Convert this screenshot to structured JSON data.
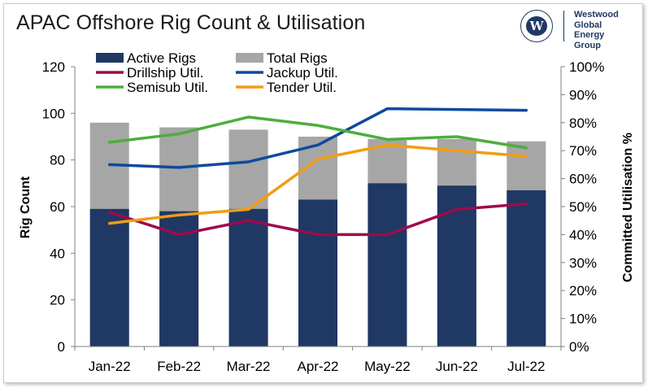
{
  "header": {
    "title": "APAC Offshore Rig Count & Utilisation",
    "logo_lines": [
      "Westwood",
      "Global Energy",
      "Group"
    ],
    "logo_mark": "W"
  },
  "colors": {
    "active_rigs": "#1f3864",
    "total_rigs": "#a6a6a6",
    "drillship": "#9e0a4c",
    "jackup": "#0e4a9e",
    "semisub": "#4cae3c",
    "tender": "#f39c12",
    "axis": "#7f7f7f"
  },
  "chart_data": {
    "type": "bar",
    "categories": [
      "Jan-22",
      "Feb-22",
      "Mar-22",
      "Apr-22",
      "May-22",
      "Jun-22",
      "Jul-22"
    ],
    "bar_series": [
      {
        "name": "Active Rigs",
        "values": [
          59,
          58,
          59,
          63,
          70,
          69,
          67
        ]
      },
      {
        "name": "Total Rigs",
        "values": [
          96,
          94,
          93,
          90,
          89,
          89,
          88
        ]
      }
    ],
    "line_series": [
      {
        "name": "Drillship Util.",
        "values": [
          48,
          40,
          45,
          40,
          40,
          49,
          51
        ]
      },
      {
        "name": "Jackup Util.",
        "values": [
          65,
          64,
          66,
          72,
          85,
          84.7,
          84.4
        ]
      },
      {
        "name": "Semisub Util.",
        "values": [
          73,
          76,
          82,
          79,
          74,
          75,
          71
        ]
      },
      {
        "name": "Tender Util.",
        "values": [
          44,
          47,
          49,
          67,
          72,
          70,
          68
        ]
      }
    ],
    "legend": [
      "Active Rigs",
      "Total Rigs",
      "Drillship Util.",
      "Jackup Util.",
      "Semisub Util.",
      "Tender Util."
    ],
    "ylabel_left": "Rig Count",
    "ylabel_right": "Committed Utilisation %",
    "ylim_left": [
      0,
      120
    ],
    "ylim_right": [
      0,
      100
    ],
    "yticks_left": [
      "0",
      "20",
      "40",
      "60",
      "80",
      "100",
      "120"
    ],
    "yticks_right": [
      "0%",
      "10%",
      "20%",
      "30%",
      "40%",
      "50%",
      "60%",
      "70%",
      "80%",
      "90%",
      "100%"
    ],
    "grid": false,
    "legend_position": "top"
  }
}
